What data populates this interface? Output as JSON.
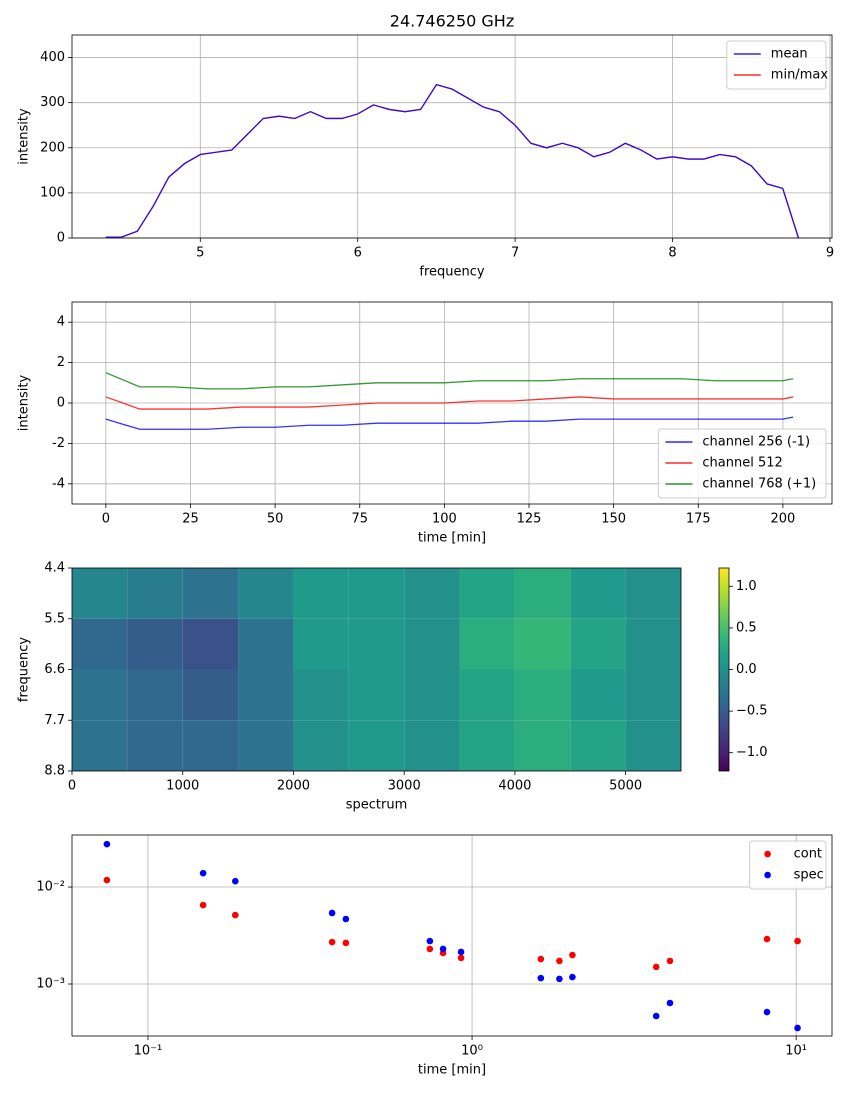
{
  "chart_data": [
    {
      "type": "line",
      "title": "24.746250 GHz",
      "xlabel": "frequency",
      "ylabel": "intensity",
      "x": [
        4.4,
        4.5,
        4.6,
        4.7,
        4.8,
        4.9,
        5.0,
        5.1,
        5.2,
        5.3,
        5.4,
        5.5,
        5.6,
        5.7,
        5.8,
        5.9,
        6.0,
        6.1,
        6.2,
        6.3,
        6.4,
        6.5,
        6.6,
        6.7,
        6.8,
        6.9,
        7.0,
        7.1,
        7.2,
        7.3,
        7.4,
        7.5,
        7.6,
        7.7,
        7.8,
        7.9,
        8.0,
        8.1,
        8.2,
        8.3,
        8.4,
        8.5,
        8.6,
        8.7,
        8.8
      ],
      "series": [
        {
          "name": "min/max",
          "color": "#ff0000",
          "values": [
            2,
            2,
            15,
            70,
            135,
            165,
            185,
            190,
            195,
            230,
            265,
            270,
            265,
            280,
            265,
            265,
            275,
            295,
            285,
            280,
            285,
            340,
            330,
            310,
            290,
            280,
            250,
            210,
            200,
            210,
            200,
            180,
            190,
            210,
            195,
            175,
            180,
            175,
            175,
            185,
            180,
            160,
            120,
            110,
            0
          ]
        },
        {
          "name": "mean",
          "color": "#0000ff",
          "values": [
            2,
            2,
            15,
            70,
            135,
            165,
            185,
            190,
            195,
            230,
            265,
            270,
            265,
            280,
            265,
            265,
            275,
            295,
            285,
            280,
            285,
            340,
            330,
            310,
            290,
            280,
            250,
            210,
            200,
            210,
            200,
            180,
            190,
            210,
            195,
            175,
            180,
            175,
            175,
            185,
            180,
            160,
            120,
            110,
            0
          ]
        }
      ],
      "legend_order": [
        "mean",
        "min/max"
      ],
      "xlim": [
        4.185,
        9.013
      ],
      "xticks": [
        5,
        6,
        7,
        8,
        9
      ],
      "ylim": [
        0,
        450
      ],
      "yticks": [
        0,
        100,
        200,
        300,
        400
      ],
      "grid": true,
      "legend": "upper right"
    },
    {
      "type": "line",
      "xlabel": "time [min]",
      "ylabel": "intensity",
      "x": [
        0,
        10,
        20,
        30,
        40,
        50,
        60,
        70,
        80,
        90,
        100,
        110,
        120,
        130,
        140,
        150,
        160,
        170,
        180,
        190,
        200,
        203
      ],
      "series": [
        {
          "name": "channel 256 (-1)",
          "color": "#0000ff",
          "values": [
            -0.8,
            -1.3,
            -1.3,
            -1.3,
            -1.2,
            -1.2,
            -1.1,
            -1.1,
            -1.0,
            -1.0,
            -1.0,
            -1.0,
            -0.9,
            -0.9,
            -0.8,
            -0.8,
            -0.8,
            -0.8,
            -0.8,
            -0.8,
            -0.8,
            -0.7
          ]
        },
        {
          "name": "channel 512",
          "color": "#ff0000",
          "values": [
            0.3,
            -0.3,
            -0.3,
            -0.3,
            -0.2,
            -0.2,
            -0.2,
            -0.1,
            0,
            0,
            0,
            0.1,
            0.1,
            0.2,
            0.3,
            0.2,
            0.2,
            0.2,
            0.2,
            0.2,
            0.2,
            0.3
          ]
        },
        {
          "name": "channel 768 (+1)",
          "color": "#008000",
          "values": [
            1.5,
            0.8,
            0.8,
            0.7,
            0.7,
            0.8,
            0.8,
            0.9,
            1.0,
            1.0,
            1.0,
            1.1,
            1.1,
            1.1,
            1.2,
            1.2,
            1.2,
            1.2,
            1.1,
            1.1,
            1.1,
            1.2
          ]
        }
      ],
      "xlim": [
        -10,
        214.5
      ],
      "xticks": [
        0,
        25,
        50,
        75,
        100,
        125,
        150,
        175,
        200
      ],
      "ylim": [
        -5,
        5
      ],
      "yticks": [
        -4,
        -2,
        0,
        2,
        4
      ],
      "grid": true,
      "legend": "lower right"
    },
    {
      "type": "heatmap",
      "xlabel": "spectrum",
      "ylabel": "frequency",
      "x_edges": [
        0,
        500,
        1000,
        1500,
        2000,
        2500,
        3000,
        3500,
        4000,
        4500,
        5000,
        5500
      ],
      "y_edges": [
        4.4,
        5.5,
        6.6,
        7.7,
        8.8
      ],
      "z": [
        [
          -0.1,
          -0.2,
          -0.3,
          -0.1,
          0.1,
          0.1,
          0.0,
          0.2,
          0.3,
          0.1,
          0.0
        ],
        [
          -0.4,
          -0.5,
          -0.6,
          -0.3,
          0.1,
          0.1,
          0.0,
          0.3,
          0.4,
          0.2,
          0.0
        ],
        [
          -0.3,
          -0.4,
          -0.5,
          -0.3,
          0.0,
          0.1,
          0.0,
          0.2,
          0.3,
          0.1,
          0.0
        ],
        [
          -0.3,
          -0.4,
          -0.4,
          -0.3,
          0.0,
          0.1,
          0.0,
          0.2,
          0.3,
          0.2,
          0.0
        ]
      ],
      "colormap": "viridis",
      "xlim": [
        0,
        5500
      ],
      "xticks": [
        0,
        1000,
        2000,
        3000,
        4000,
        5000
      ],
      "ylim": [
        8.8,
        4.4
      ],
      "yticks": [
        4.4,
        5.5,
        6.6,
        7.7,
        8.8
      ],
      "clim": [
        -1.22,
        1.22
      ],
      "cticks": [
        {
          "value": -1.0,
          "label": "−1.0"
        },
        {
          "value": -0.5,
          "label": "−0.5"
        },
        {
          "value": 0,
          "label": "0.0"
        },
        {
          "value": 0.5,
          "label": "0.5"
        },
        {
          "value": 1.0,
          "label": "1.0"
        }
      ],
      "grid": false
    },
    {
      "type": "scatter",
      "xlabel": "time [min]",
      "x": [
        0.0747,
        0.148,
        0.186,
        0.37,
        0.408,
        0.741,
        0.814,
        0.925,
        1.63,
        1.86,
        2.04,
        3.7,
        4.08,
        8.13,
        10.1
      ],
      "series": [
        {
          "name": "cont",
          "color": "#ff0000",
          "values": [
            0.0118,
            0.00652,
            0.00514,
            0.00271,
            0.00265,
            0.0023,
            0.00209,
            0.00186,
            0.00181,
            0.00173,
            0.00199,
            0.0015,
            0.00173,
            0.00291,
            0.00277
          ]
        },
        {
          "name": "spec",
          "color": "#0000ff",
          "values": [
            0.0277,
            0.0139,
            0.0115,
            0.0054,
            0.00468,
            0.00277,
            0.0023,
            0.00214,
            0.00115,
            0.00113,
            0.00118,
            0.000468,
            0.000637,
            0.000514,
            0.000352
          ]
        }
      ],
      "xscale": "log",
      "yscale": "log",
      "xlim": [
        0.0583,
        12.9
      ],
      "xticks": [
        {
          "value": 0.1,
          "label": "10⁻¹"
        },
        {
          "value": 1,
          "label": "10⁰"
        },
        {
          "value": 10,
          "label": "10¹"
        }
      ],
      "ylim": [
        0.000291,
        0.0344
      ],
      "yticks": [
        {
          "value": 0.001,
          "label": "10⁻³"
        },
        {
          "value": 0.01,
          "label": "10⁻²"
        }
      ],
      "grid": true,
      "legend": "upper right"
    }
  ]
}
